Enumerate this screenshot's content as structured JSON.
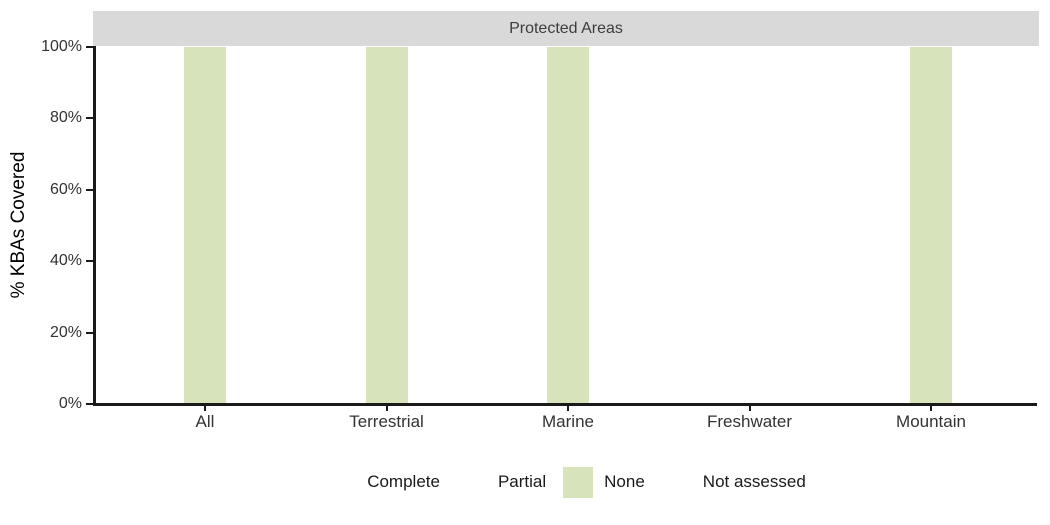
{
  "chart_data": {
    "type": "bar",
    "title": "Protected Areas",
    "xlabel": "",
    "ylabel": "% KBAs Covered",
    "categories": [
      "All",
      "Terrestrial",
      "Marine",
      "Freshwater",
      "Mountain"
    ],
    "series": [
      {
        "name": "None",
        "color": "#d7e3ba",
        "values": [
          100,
          100,
          100,
          0,
          100
        ]
      }
    ],
    "ylim": [
      0,
      100
    ],
    "yticks": {
      "values": [
        0,
        20,
        40,
        60,
        80,
        100
      ],
      "labels": [
        "0%",
        "20%",
        "40%",
        "60%",
        "80%",
        "100%"
      ]
    },
    "grid": false,
    "legend_position": "bottom",
    "legend_entries": [
      "Complete",
      "Partial",
      "None",
      "Not assessed"
    ]
  },
  "strip": {
    "label": "Protected Areas",
    "background": "#d9d9d9",
    "text_color": "#3d3d3d"
  },
  "axis": {
    "y_title": "% KBAs Covered",
    "line_color": "#1a1a1a"
  },
  "legend": {
    "items": [
      {
        "label": "Complete",
        "swatch_color": "#ffffff"
      },
      {
        "label": "Partial",
        "swatch_color": "#ffffff"
      },
      {
        "label": "None",
        "swatch_color": "#d7e3ba"
      },
      {
        "label": "Not assessed",
        "swatch_color": "#ffffff"
      }
    ]
  }
}
